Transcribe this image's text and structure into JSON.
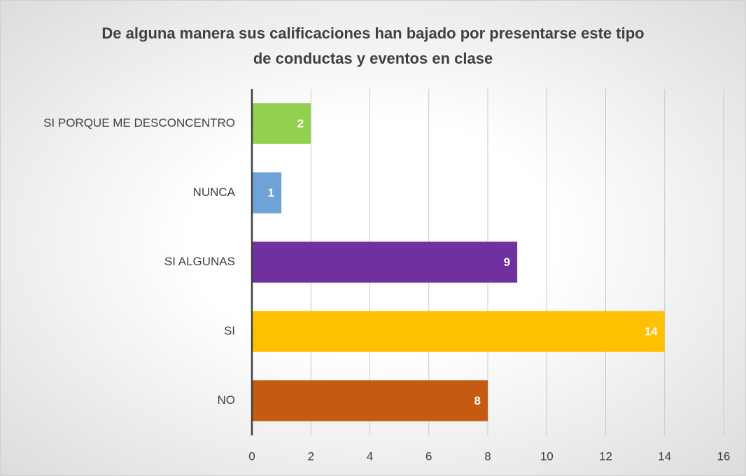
{
  "chart_data": {
    "type": "barh",
    "title": "De alguna manera sus calificaciones han bajado por presentarse este tipo de conductas y eventos en clase",
    "categories": [
      "SI PORQUE ME DESCONCENTRO",
      "NUNCA",
      "SI ALGUNAS",
      "SI",
      "NO"
    ],
    "values": [
      2,
      1,
      9,
      14,
      8
    ],
    "colors": [
      "#92d050",
      "#6fa3d8",
      "#7030a0",
      "#ffc000",
      "#c55a11"
    ],
    "xlim": [
      0,
      16
    ],
    "xticks": [
      0,
      2,
      4,
      6,
      8,
      10,
      12,
      14,
      16
    ],
    "grid": true
  }
}
